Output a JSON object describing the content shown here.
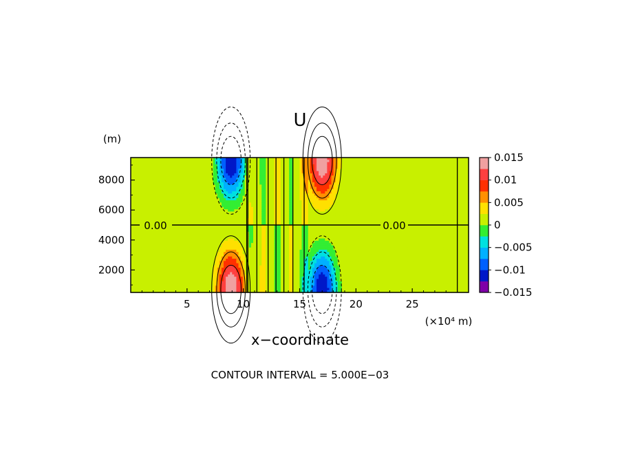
{
  "chart_data": {
    "type": "heatmap",
    "title": "U",
    "xlabel": "x−coordinate",
    "ylabel": "",
    "x_unit": "(×10⁴ m)",
    "y_unit": "(m)",
    "xlim": [
      0,
      30
    ],
    "ylim": [
      500,
      9500
    ],
    "x_ticks": [
      "5",
      "10",
      "15",
      "20",
      "25"
    ],
    "y_ticks": [
      "2000",
      "4000",
      "6000",
      "8000"
    ],
    "contour_interval_text": "CONTOUR INTERVAL = 5.000E−03",
    "zero_contour_labels": [
      "0.00",
      "0.00"
    ],
    "colorbar": {
      "ticks": [
        "0.015",
        "0.01",
        "0.005",
        "0",
        "−0.005",
        "−0.01",
        "−0.015"
      ],
      "levels": [
        -0.015,
        -0.0125,
        -0.01,
        -0.0075,
        -0.005,
        -0.0025,
        0.0025,
        0.005,
        0.0075,
        0.01,
        0.0125,
        0.015
      ],
      "colors": [
        "#7f00a8",
        "#0018c8",
        "#0060ff",
        "#00b0ff",
        "#00e0e0",
        "#33ee33",
        "#c8f000",
        "#ffe000",
        "#ff9000",
        "#ff3000",
        "#ff4040",
        "#f0a0a0"
      ]
    },
    "structures": [
      {
        "x": 8.9,
        "y_center": 9300,
        "peak": -0.015
      },
      {
        "x": 8.9,
        "y_center": 700,
        "peak": 0.015
      },
      {
        "x": 17.0,
        "y_center": 9300,
        "peak": 0.015
      },
      {
        "x": 17.0,
        "y_center": 700,
        "peak": -0.015
      }
    ],
    "mid_line_y": 5000,
    "vertical_contours_x": [
      10.3,
      10.4,
      11.2,
      12.2,
      12.9,
      13.6,
      14.4,
      15.4,
      29.0
    ]
  }
}
